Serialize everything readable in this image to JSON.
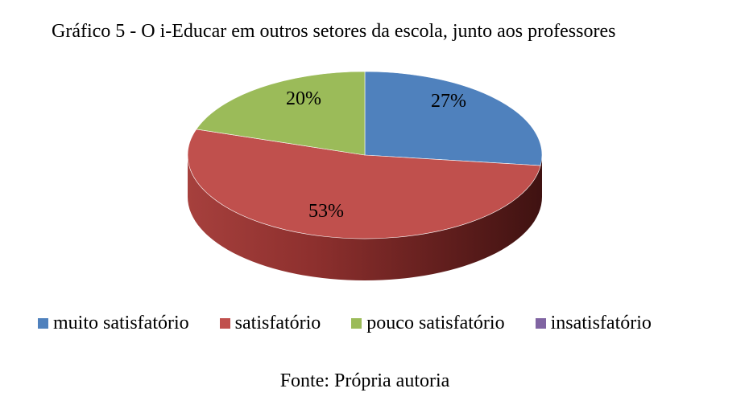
{
  "title": "Gráfico 5 - O i-Educar em outros setores da escola, junto aos professores",
  "source": "Fonte: Própria autoria",
  "chart_data": {
    "type": "pie",
    "title": "Gráfico 5 - O i-Educar em outros setores da escola, junto aos professores",
    "categories": [
      "muito satisfatório",
      "satisfatório",
      "pouco satisfatório",
      "insatisfatório"
    ],
    "values": [
      27,
      53,
      20,
      0
    ],
    "labels": [
      "27%",
      "53%",
      "20%",
      ""
    ],
    "colors": [
      "#4F81BD",
      "#C0504D",
      "#9BBB59",
      "#8064A2"
    ],
    "legend_position": "bottom",
    "style": "3d"
  }
}
